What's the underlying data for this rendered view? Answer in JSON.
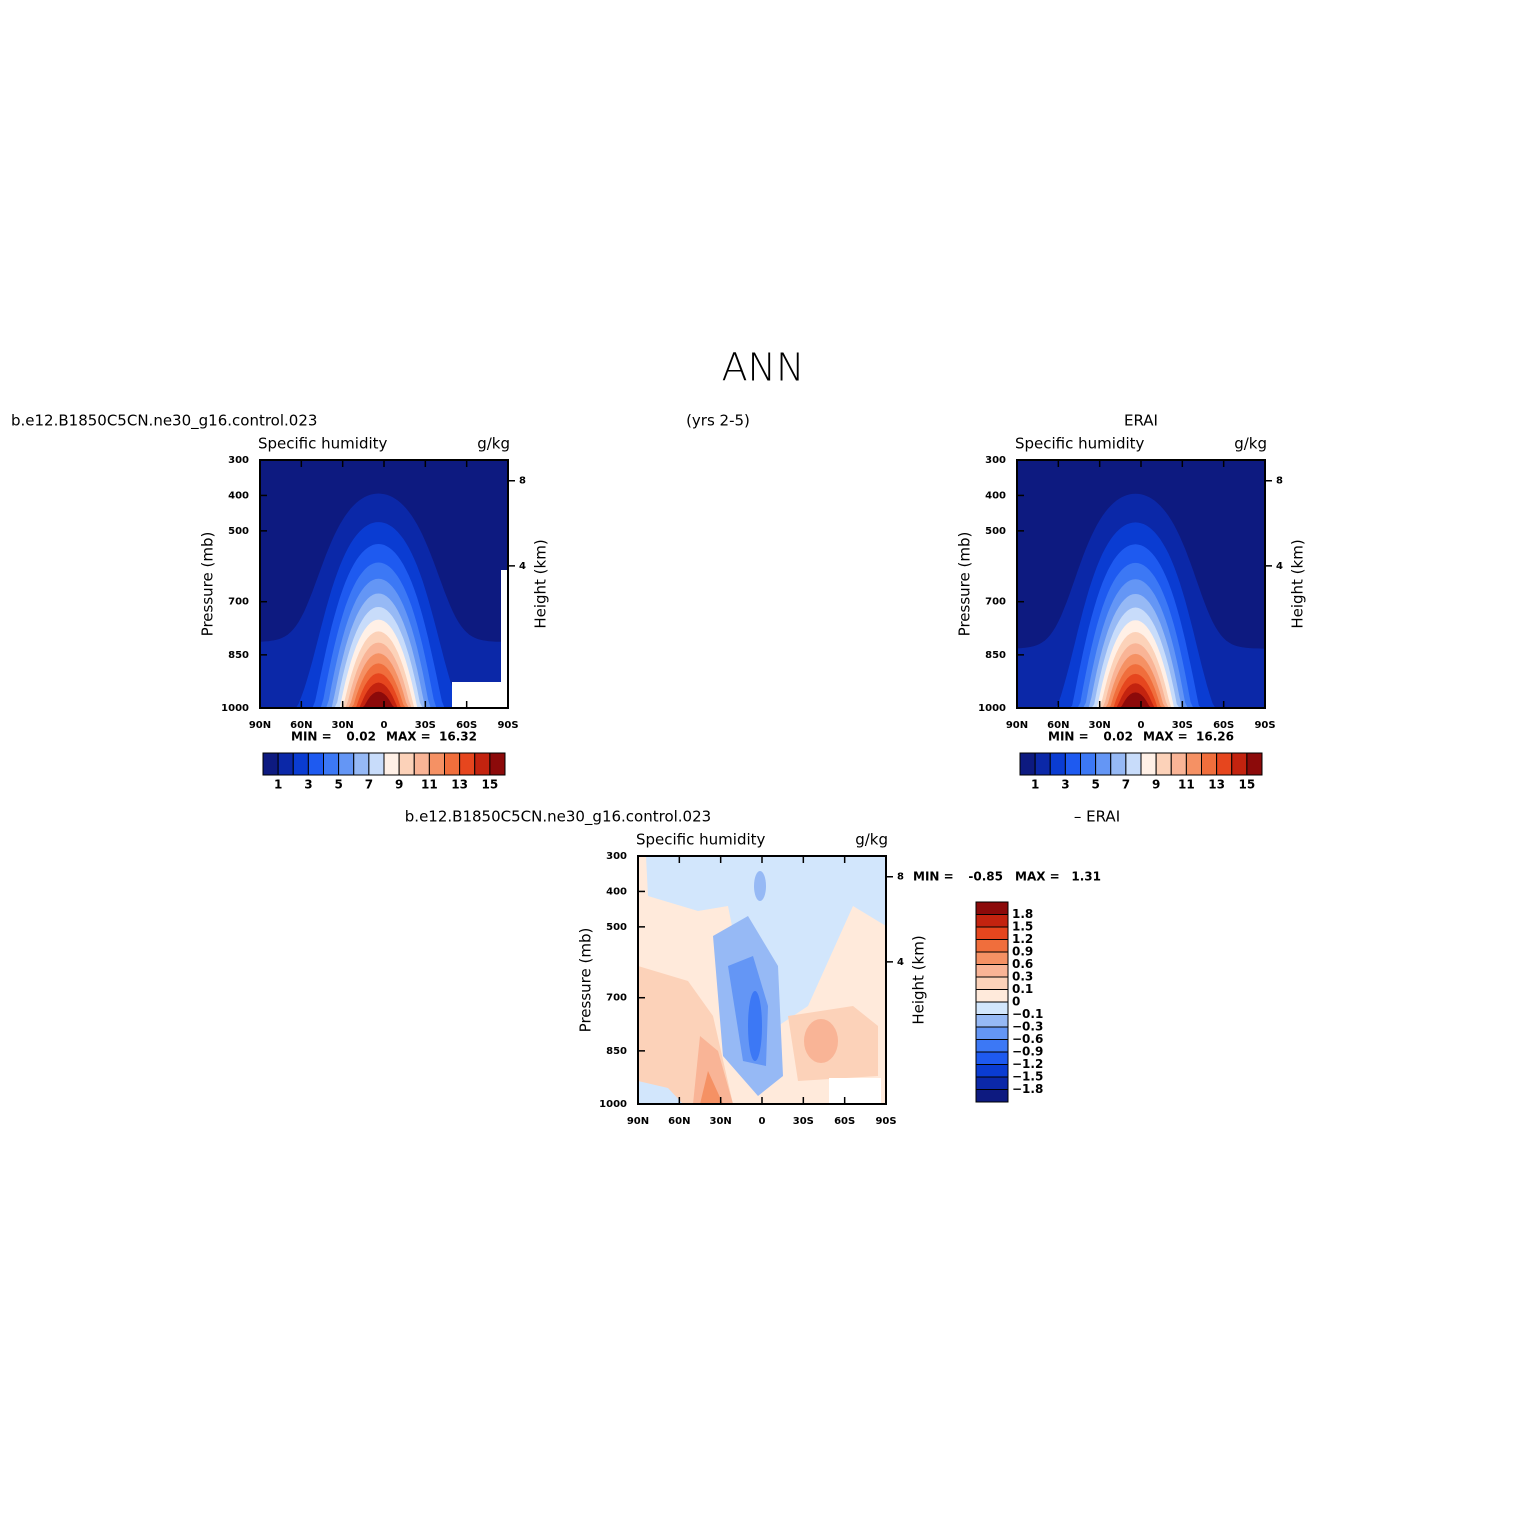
{
  "title": "ANN",
  "subtitle": "(yrs 2-5)",
  "chart_data": [
    {
      "type": "contour",
      "title_left": "b.e12.B1850C5CN.ne30_g16.control.023",
      "variable": "Specific humidity",
      "units": "g/kg",
      "ylabel": "Pressure (mb)",
      "y2label": "Height (km)",
      "xlim": [
        90,
        -90
      ],
      "xticks": [
        {
          "value": 90,
          "label": "90N"
        },
        {
          "value": 60,
          "label": "60N"
        },
        {
          "value": 30,
          "label": "30N"
        },
        0,
        {
          "value": -30,
          "label": "30S"
        },
        {
          "value": -60,
          "label": "60S"
        },
        {
          "value": -90,
          "label": "90S"
        }
      ],
      "ylim": [
        300,
        1000
      ],
      "yticks": [
        300,
        400,
        500,
        700,
        850,
        1000
      ],
      "y2ticks": [
        4,
        8
      ],
      "min_label": "MIN =",
      "min": 0.02,
      "max_label": "MAX =",
      "max": 16.32,
      "colorbar_ticks": [
        1,
        3,
        5,
        7,
        9,
        11,
        13,
        15
      ],
      "colors": [
        "#0d1a80",
        "#0b28a8",
        "#0a3cd2",
        "#1e5af0",
        "#3c78f5",
        "#6496f5",
        "#96b9f5",
        "#c8dcfa",
        "#fff0e6",
        "#fcd2b9",
        "#f9b496",
        "#f59164",
        "#f06e3c",
        "#e6461e",
        "#c3230f",
        "#8c0a0a"
      ]
    },
    {
      "type": "contour",
      "title_left": "ERAI",
      "variable": "Specific humidity",
      "units": "g/kg",
      "ylabel": "Pressure (mb)",
      "y2label": "Height (km)",
      "xlim": [
        90,
        -90
      ],
      "xticks": [
        {
          "value": 90,
          "label": "90N"
        },
        {
          "value": 60,
          "label": "60N"
        },
        {
          "value": 30,
          "label": "30N"
        },
        0,
        {
          "value": -30,
          "label": "30S"
        },
        {
          "value": -60,
          "label": "60S"
        },
        {
          "value": -90,
          "label": "90S"
        }
      ],
      "ylim": [
        300,
        1000
      ],
      "yticks": [
        300,
        400,
        500,
        700,
        850,
        1000
      ],
      "y2ticks": [
        4,
        8
      ],
      "min_label": "MIN =",
      "min": 0.02,
      "max_label": "MAX =",
      "max": 16.26,
      "colorbar_ticks": [
        1,
        3,
        5,
        7,
        9,
        11,
        13,
        15
      ],
      "colors": [
        "#0d1a80",
        "#0b28a8",
        "#0a3cd2",
        "#1e5af0",
        "#3c78f5",
        "#6496f5",
        "#96b9f5",
        "#c8dcfa",
        "#fff0e6",
        "#fcd2b9",
        "#f9b496",
        "#f59164",
        "#f06e3c",
        "#e6461e",
        "#c3230f",
        "#8c0a0a"
      ]
    },
    {
      "type": "contour",
      "title_left": "b.e12.B1850C5CN.ne30_g16.control.023",
      "title_right": "– ERAI",
      "variable": "Specific humidity",
      "units": "g/kg",
      "ylabel": "Pressure (mb)",
      "y2label": "Height (km)",
      "xlim": [
        90,
        -90
      ],
      "xticks": [
        {
          "value": 90,
          "label": "90N"
        },
        {
          "value": 60,
          "label": "60N"
        },
        {
          "value": 30,
          "label": "30N"
        },
        0,
        {
          "value": -30,
          "label": "30S"
        },
        {
          "value": -60,
          "label": "60S"
        },
        {
          "value": -90,
          "label": "90S"
        }
      ],
      "ylim": [
        300,
        1000
      ],
      "yticks": [
        300,
        400,
        500,
        700,
        850,
        1000
      ],
      "y2ticks": [
        4,
        8
      ],
      "min_label": "MIN =",
      "min": -0.85,
      "max_label": "MAX =",
      "max": 1.31,
      "colorbar_ticks": [
        {
          "value": -1.8,
          "label": "−1.8"
        },
        {
          "value": -1.5,
          "label": "−1.5"
        },
        {
          "value": -1.2,
          "label": "−1.2"
        },
        {
          "value": -0.9,
          "label": "−0.9"
        },
        {
          "value": -0.6,
          "label": "−0.6"
        },
        {
          "value": -0.3,
          "label": "−0.3"
        },
        {
          "value": -0.1,
          "label": "−0.1"
        },
        0,
        0.1,
        0.3,
        0.6,
        0.9,
        1.2,
        1.5,
        1.8
      ],
      "colors": [
        "#0d1a80",
        "#0b28a8",
        "#0a3cd2",
        "#1e5af0",
        "#3c78f5",
        "#6496f5",
        "#96b9f5",
        "#d2e6fc",
        "#ffeadb",
        "#fcd2b9",
        "#f9b496",
        "#f59164",
        "#f06e3c",
        "#e6461e",
        "#c3230f",
        "#8c0a0a"
      ]
    }
  ]
}
